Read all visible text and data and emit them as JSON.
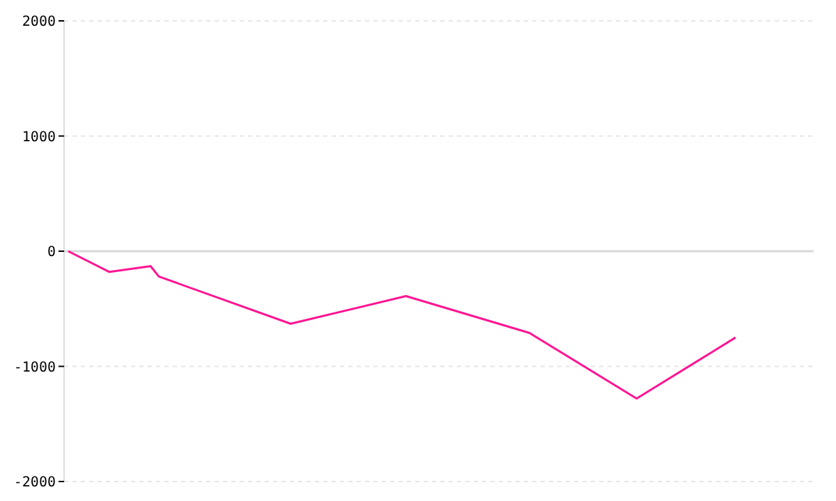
{
  "chart_data": {
    "type": "line",
    "categories": [
      null,
      null,
      null,
      null,
      null,
      null,
      null,
      null,
      null,
      null,
      null,
      null,
      null,
      null,
      null,
      null,
      null,
      null,
      null,
      null,
      null,
      null,
      null,
      null,
      null,
      null,
      null,
      null,
      null,
      null,
      null,
      null,
      null,
      null,
      null,
      null,
      null,
      null,
      null,
      null,
      null,
      null,
      null,
      null,
      null,
      null,
      null,
      null,
      null,
      null,
      null,
      null,
      null,
      null,
      null,
      null,
      null,
      null,
      null,
      null,
      null,
      null,
      null,
      null,
      null,
      null,
      null,
      null,
      null,
      null,
      null,
      null,
      null,
      null,
      null,
      null,
      null,
      null,
      null,
      null,
      null,
      null,
      null,
      null,
      null,
      null,
      null,
      null,
      null,
      null,
      null
    ],
    "values": [
      0,
      null,
      null,
      null,
      null,
      -180,
      null,
      null,
      null,
      null,
      -130,
      -220,
      null,
      null,
      null,
      null,
      null,
      null,
      null,
      null,
      null,
      null,
      null,
      null,
      null,
      null,
      null,
      -630,
      null,
      null,
      null,
      null,
      null,
      null,
      null,
      null,
      null,
      null,
      null,
      null,
      null,
      -390,
      null,
      null,
      null,
      null,
      null,
      null,
      null,
      null,
      null,
      null,
      null,
      null,
      null,
      null,
      -710,
      null,
      null,
      null,
      null,
      null,
      null,
      null,
      null,
      null,
      null,
      null,
      null,
      -1280,
      null,
      null,
      null,
      null,
      null,
      null,
      null,
      null,
      null,
      null,
      null,
      -750,
      null,
      null,
      null,
      null,
      null,
      null,
      null,
      null,
      null
    ],
    "color": "#ff1493",
    "ylim": [
      -2000,
      2000
    ],
    "yticks": [
      -2000,
      -1000,
      0,
      1000,
      2000
    ],
    "tick_labels": "y",
    "grid": "y",
    "marker": "none",
    "line_style": "solid",
    "legend": false
  }
}
